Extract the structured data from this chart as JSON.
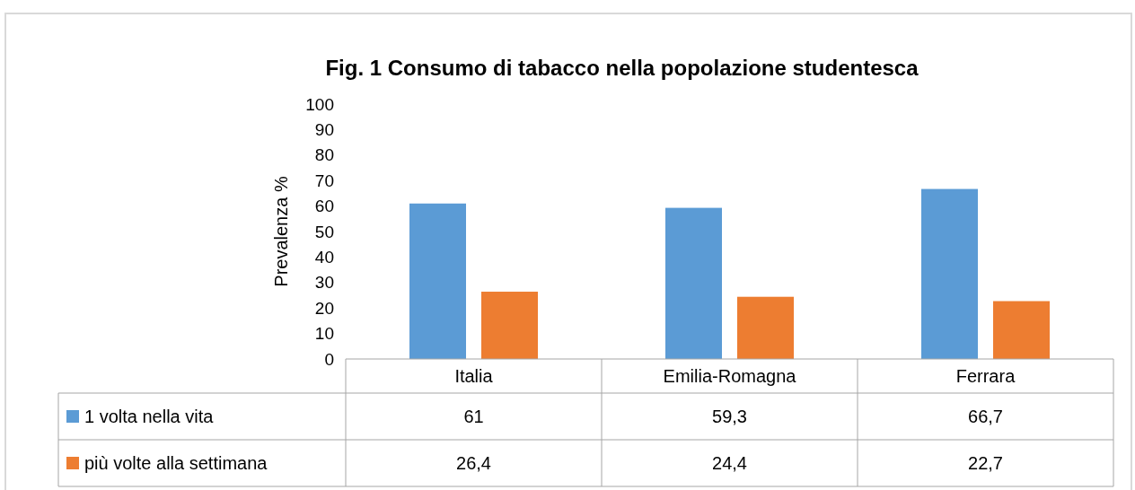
{
  "chart_data": {
    "type": "bar",
    "title": "Fig. 1 Consumo di tabacco nella popolazione studentesca",
    "ylabel": "Prevalenza %",
    "categories": [
      "Italia",
      "Emilia-Romagna",
      "Ferrara"
    ],
    "series": [
      {
        "name": "1 volta nella vita",
        "color": "#5b9bd5",
        "values": [
          61,
          59.3,
          66.7
        ],
        "value_labels": [
          "61",
          "59,3",
          "66,7"
        ]
      },
      {
        "name": "più volte alla settimana",
        "color": "#ed7d31",
        "values": [
          26.4,
          24.4,
          22.7
        ],
        "value_labels": [
          "26,4",
          "24,4",
          "22,7"
        ]
      }
    ],
    "ylim": [
      0,
      100
    ],
    "yticks": [
      0,
      10,
      20,
      30,
      40,
      50,
      60,
      70,
      80,
      90,
      100
    ],
    "grid": false,
    "legend": "bottom"
  }
}
